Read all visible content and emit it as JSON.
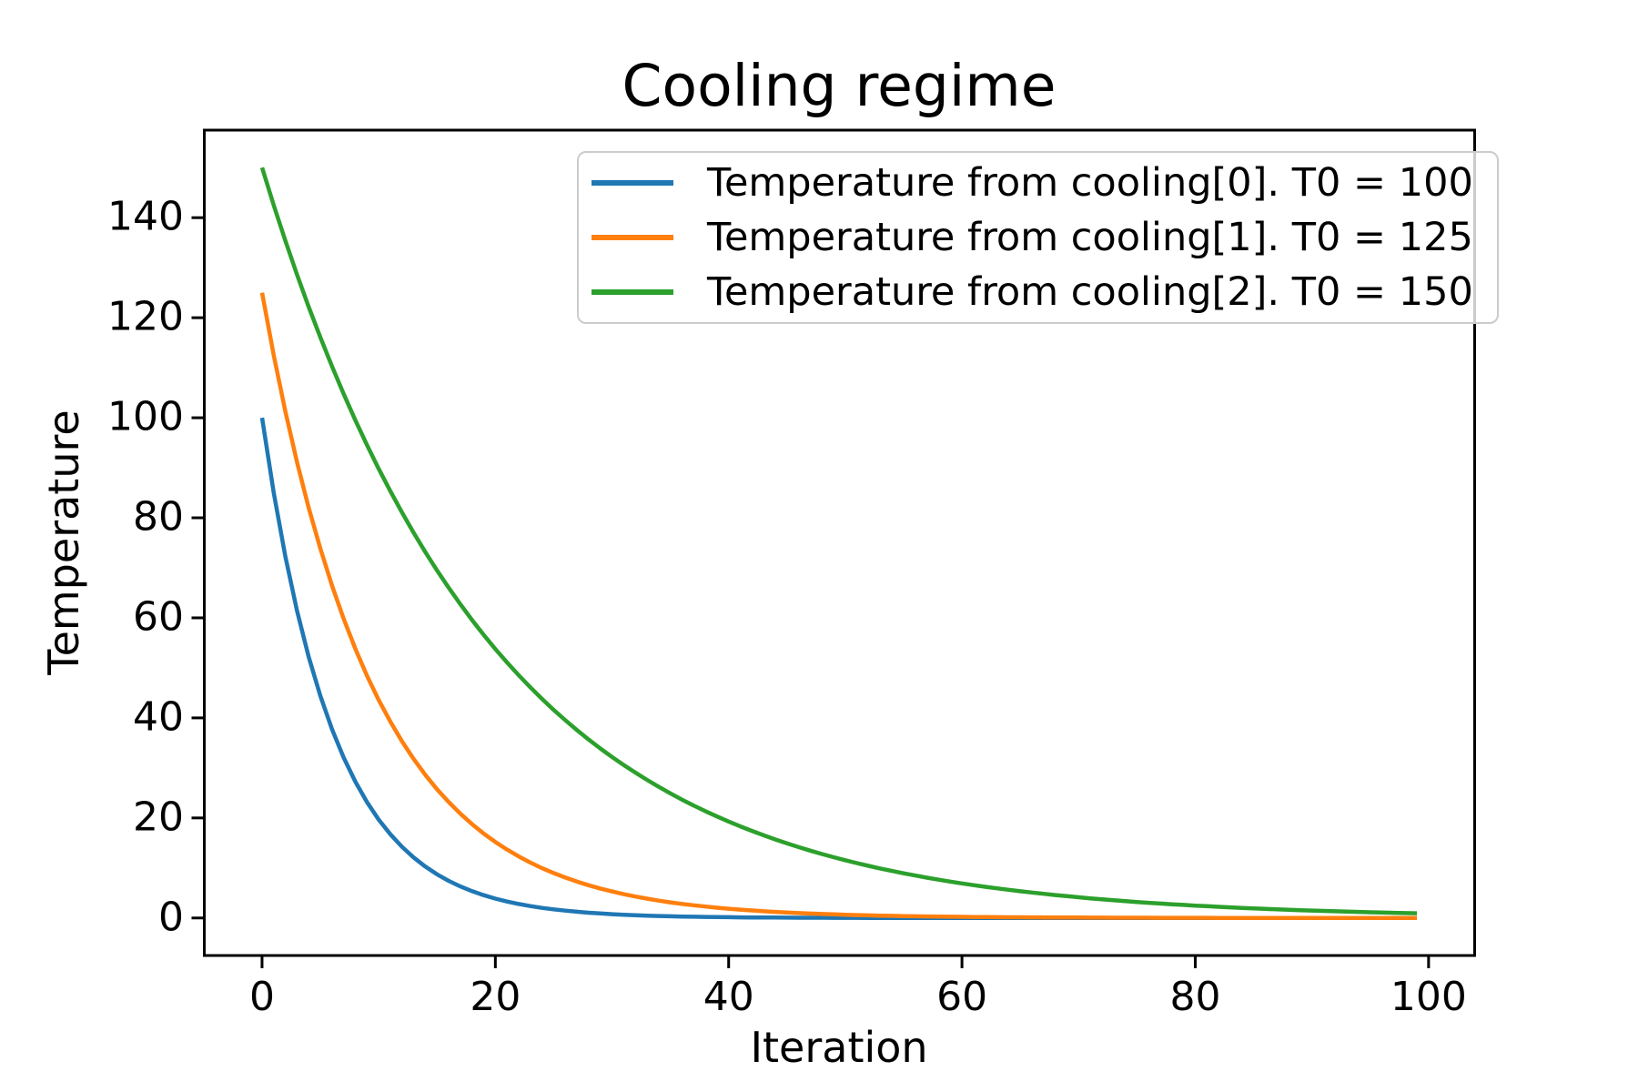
{
  "chart_data": {
    "type": "line",
    "title": "Cooling regime",
    "xlabel": "Iteration",
    "ylabel": "Temperature",
    "x_range": [
      0,
      99
    ],
    "iterations": 100,
    "xlim": [
      -4.95,
      103.95
    ],
    "ylim": [
      -7.5,
      157.5
    ],
    "x_ticks": [
      0,
      20,
      40,
      60,
      80,
      100
    ],
    "y_ticks": [
      0,
      20,
      40,
      60,
      80,
      100,
      120,
      140
    ],
    "grid": false,
    "legend_position": "upper right inside plot",
    "formula": "T(n) = T0 * rate^n for n = 0..99",
    "axis_color": "#000000",
    "legend_border_color": "#cccccc",
    "background_color": "#ffffff",
    "series": [
      {
        "name": "cooling0",
        "label": "Temperature from cooling[0]. T0 = 100",
        "color": "#1f77b4",
        "T0": 100,
        "rate": 0.85,
        "x_every_10": [
          0,
          10,
          20,
          30,
          40,
          50,
          60,
          70,
          80,
          90
        ],
        "values_every_10": [
          100,
          19.69,
          3.88,
          0.76,
          0.15,
          0.03,
          0.006,
          0.001,
          0.0002,
          4e-05
        ]
      },
      {
        "name": "cooling1",
        "label": "Temperature from cooling[1]. T0 = 125",
        "color": "#ff7f0e",
        "T0": 125,
        "rate": 0.9,
        "x_every_10": [
          0,
          10,
          20,
          30,
          40,
          50,
          60,
          70,
          80,
          90
        ],
        "values_every_10": [
          125,
          43.59,
          15.2,
          5.3,
          1.85,
          0.64,
          0.22,
          0.078,
          0.027,
          0.0095
        ]
      },
      {
        "name": "cooling2",
        "label": "Temperature from cooling[2]. T0 = 150",
        "color": "#2ca02c",
        "T0": 150,
        "rate": 0.95,
        "x_every_10": [
          0,
          10,
          20,
          30,
          40,
          50,
          60,
          70,
          80,
          90
        ],
        "values_every_10": [
          150,
          89.81,
          53.77,
          32.2,
          19.28,
          11.54,
          6.91,
          4.14,
          2.48,
          1.48
        ]
      }
    ]
  }
}
